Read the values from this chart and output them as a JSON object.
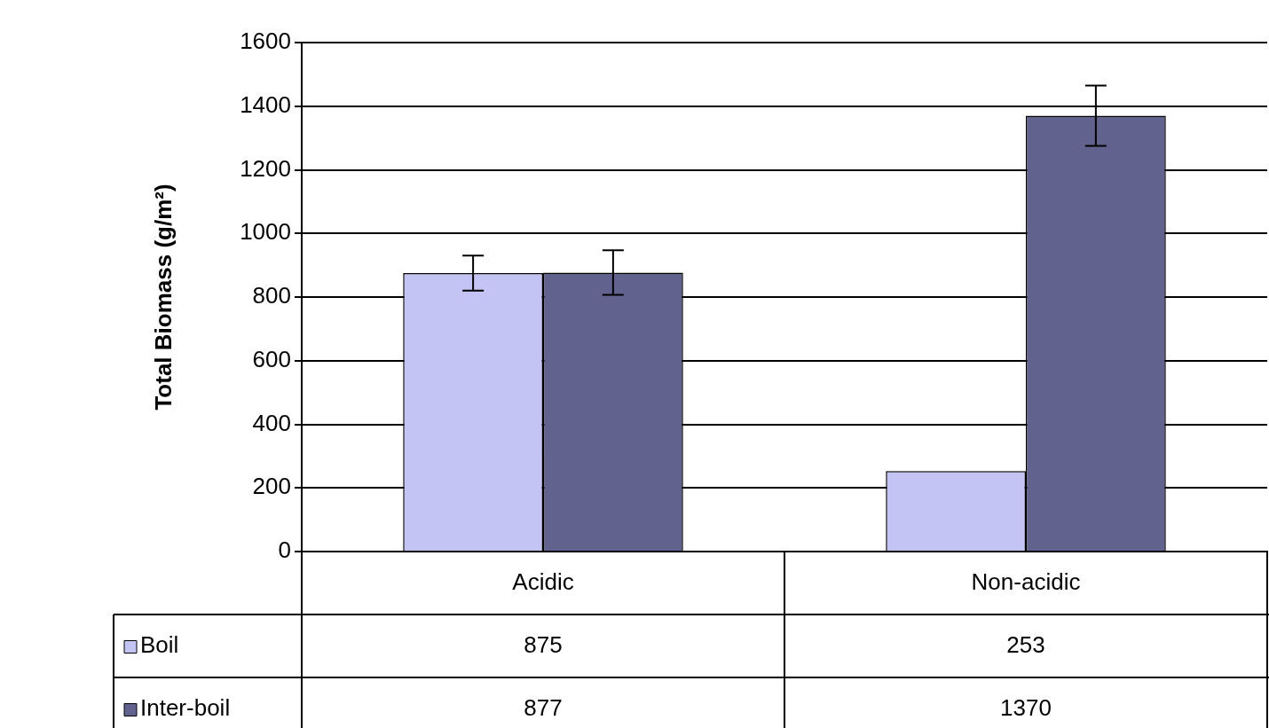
{
  "chart_data": {
    "type": "bar",
    "ylabel": "Total Biomass (g/m²)",
    "categories": [
      "Acidic",
      "Non-acidic"
    ],
    "series": [
      {
        "name": "Boil",
        "color": "#c4c4f4",
        "values": [
          875,
          253
        ],
        "errors": [
          55,
          null
        ]
      },
      {
        "name": "Inter-boil",
        "color": "#62628f",
        "values": [
          877,
          1370
        ],
        "errors": [
          70,
          95
        ]
      }
    ],
    "ylim": [
      0,
      1600
    ],
    "yticks": [
      0,
      200,
      400,
      600,
      800,
      1000,
      1200,
      1400,
      1600
    ],
    "grid": "y",
    "legend": "bottom",
    "data_labels": true
  }
}
